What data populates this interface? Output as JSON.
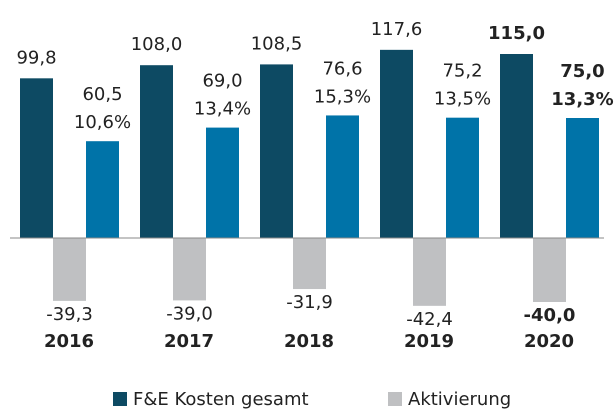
{
  "chart_data": {
    "type": "bar",
    "categories": [
      "2016",
      "2017",
      "2018",
      "2019",
      "2020"
    ],
    "series": [
      {
        "name": "F&E Kosten gesamt",
        "color": "#0d4a63",
        "values": [
          99.8,
          108.0,
          108.5,
          117.6,
          115.0
        ],
        "value_labels": [
          "99,8",
          "108,0",
          "108,5",
          "117,6",
          "115,0"
        ]
      },
      {
        "name": "Aktivierung",
        "color": "#bfc0c2",
        "values": [
          -39.3,
          -39.0,
          -31.9,
          -42.4,
          -40.0
        ],
        "value_labels": [
          "-39,3",
          "-39,0",
          "-31,9",
          "-42,4",
          "-40,0"
        ]
      },
      {
        "color": "#0073a8",
        "values": [
          60.5,
          69.0,
          76.6,
          75.2,
          75.0
        ],
        "value_labels": [
          "60,5",
          "69,0",
          "76,6",
          "75,2",
          "75,0"
        ],
        "shares": [
          10.6,
          13.4,
          15.3,
          13.5,
          13.3
        ],
        "share_labels": [
          "10,6%",
          "13,4%",
          "15,3%",
          "13,5%",
          "13,3%"
        ]
      }
    ],
    "ylim": [
      -50,
      130
    ],
    "bold_last": true
  }
}
